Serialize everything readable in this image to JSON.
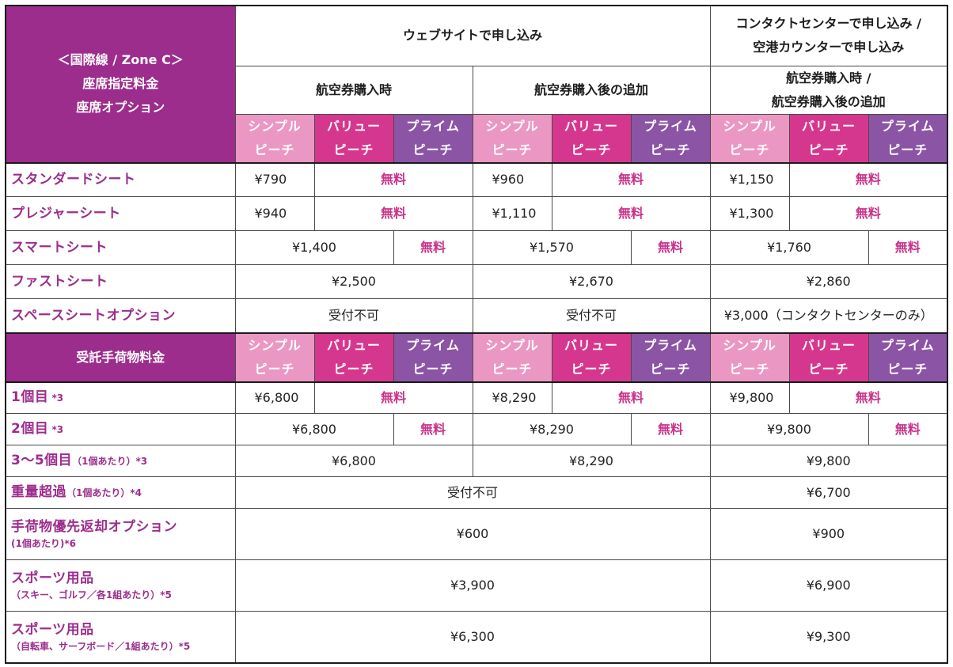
{
  "header": {
    "corner": {
      "line1": "＜国際線 / Zone C＞",
      "line2": "座席指定料金",
      "line3": "座席オプション"
    },
    "web": "ウェブサイトで申し込み",
    "contact": {
      "line1": "コンタクトセンターで申し込み /",
      "line2": "空港カウンターで申し込み"
    },
    "web_purchase": "航空券購入時",
    "web_after": "航空券購入後の追加",
    "contact_sub": {
      "line1": "航空券購入時 /",
      "line2": "航空券購入後の追加"
    }
  },
  "fares": {
    "simple": {
      "line1": "シンプル",
      "line2": "ピーチ"
    },
    "value": {
      "line1": "バリュー",
      "line2": "ピーチ"
    },
    "prime": {
      "line1": "プライム",
      "line2": "ピーチ"
    }
  },
  "free_label": "無料",
  "seats": [
    {
      "name": "スタンダードシート",
      "w": "¥790",
      "a": "¥960",
      "c": "¥1,150"
    },
    {
      "name": "プレジャーシート",
      "w": "¥940",
      "a": "¥1,110",
      "c": "¥1,300"
    },
    {
      "name": "スマートシート",
      "w": "¥1,400",
      "a": "¥1,570",
      "c": "¥1,760"
    },
    {
      "name": "ファストシート",
      "w": "¥2,500",
      "a": "¥2,670",
      "c": "¥2,860"
    },
    {
      "name": "スペースシートオプション",
      "w": "受付不可",
      "a": "受付不可",
      "c": "¥3,000（コンタクトセンターのみ）"
    }
  ],
  "baggage_header": "受託手荷物料金",
  "baggage": [
    {
      "name": "1個目",
      "note": " *3",
      "w": "¥6,800",
      "a": "¥8,290",
      "c": "¥9,800"
    },
    {
      "name": "2個目",
      "note": " *3",
      "w": "¥6,800",
      "a": "¥8,290",
      "c": "¥9,800"
    },
    {
      "name": "3～5個目",
      "note": "（1個あたり）*3",
      "w": "¥6,800",
      "a": "¥8,290",
      "c": "¥9,800"
    },
    {
      "name": "重量超過",
      "note": "（1個あたり）*4",
      "web": "受付不可",
      "c": "¥6,700"
    },
    {
      "name": "手荷物優先返却オプション",
      "note": "(1個あたり)*6",
      "web": "¥600",
      "c": "¥900"
    },
    {
      "name": "スポーツ用品",
      "note": "（スキー、ゴルフ／各1組あたり）*5",
      "web": "¥3,900",
      "c": "¥6,900"
    },
    {
      "name": "スポーツ用品",
      "note": "（自転車、サーフボード／1組あたり）*5",
      "web": "¥6,300",
      "c": "¥9,300"
    }
  ],
  "colors": {
    "purple": "#9c2d8c",
    "simple": "#eb97c3",
    "value": "#d6378e",
    "prime": "#8c54a5",
    "free": "#c8338a"
  }
}
